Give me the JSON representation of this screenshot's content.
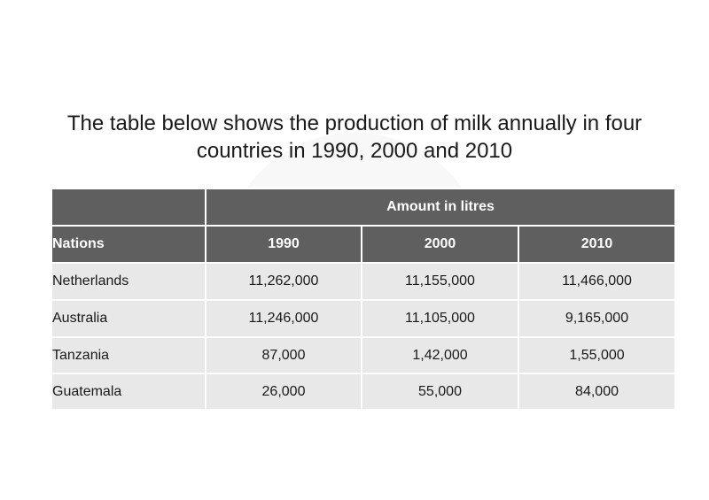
{
  "title_lines": [
    "The table below shows the production of milk annually in four",
    "countries in 1990, 2000 and 2010"
  ],
  "chart_data": {
    "type": "table",
    "title": "The table below shows the production of milk annually in four countries in 1990, 2000 and 2010",
    "group_header": "Amount in litres",
    "row_header": "Nations",
    "columns": [
      "1990",
      "2000",
      "2010"
    ],
    "rows": [
      {
        "nation": "Netherlands",
        "values": [
          "11,262,000",
          "11,155,000",
          "11,466,000"
        ]
      },
      {
        "nation": "Australia",
        "values": [
          "11,246,000",
          "11,105,000",
          "9,165,000"
        ]
      },
      {
        "nation": "Tanzania",
        "values": [
          "87,000",
          "1,42,000",
          "1,55,000"
        ]
      },
      {
        "nation": "Guatemala",
        "values": [
          "26,000",
          "55,000",
          "84,000"
        ]
      }
    ]
  },
  "colors": {
    "header_bg": "#5f5f5f",
    "header_text": "#ffffff",
    "cell_bg": "#e8e8e8",
    "text": "#1a1a1a"
  }
}
